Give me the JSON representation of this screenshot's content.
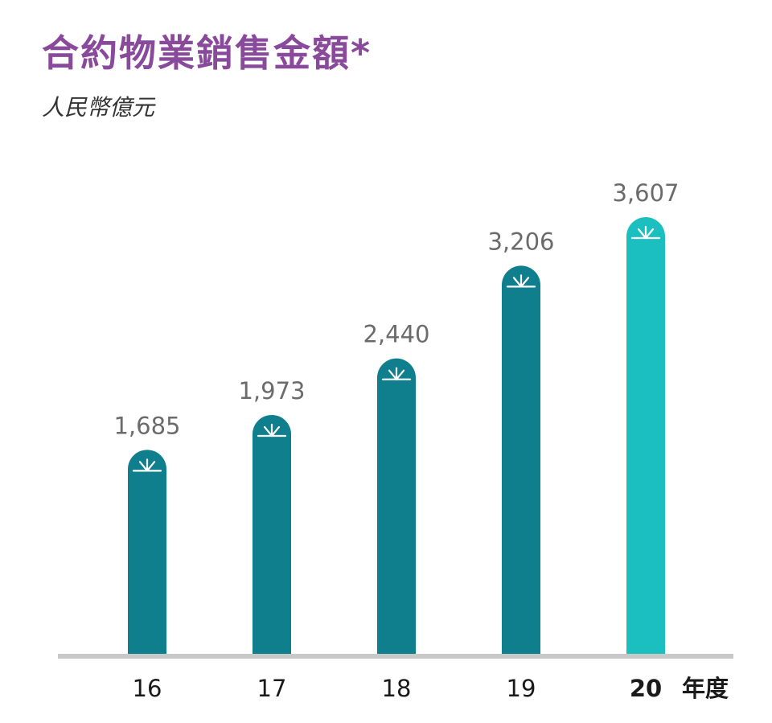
{
  "header": {
    "title": "合約物業銷售金額*",
    "unit": "人民幣億元"
  },
  "chart_data": {
    "type": "bar",
    "title": "合約物業銷售金額*",
    "ylabel": "人民幣億元",
    "xlabel": "年度",
    "categories": [
      "16",
      "17",
      "18",
      "19",
      "20"
    ],
    "values": [
      1685,
      1973,
      2440,
      3206,
      3607
    ],
    "value_labels": [
      "1,685",
      "1,973",
      "2,440",
      "3,206",
      "3,607"
    ],
    "ylim": [
      0,
      3607
    ],
    "grid": false,
    "legend": "none",
    "highlight_index": 4,
    "bar_icon": "sprout-icon",
    "colors": {
      "bar": "#0f7f8e",
      "bar_highlight": "#1cbfbf",
      "icon_stroke": "#ffffff",
      "baseline": "#c8c8c8",
      "title": "#8a4a9c"
    }
  }
}
